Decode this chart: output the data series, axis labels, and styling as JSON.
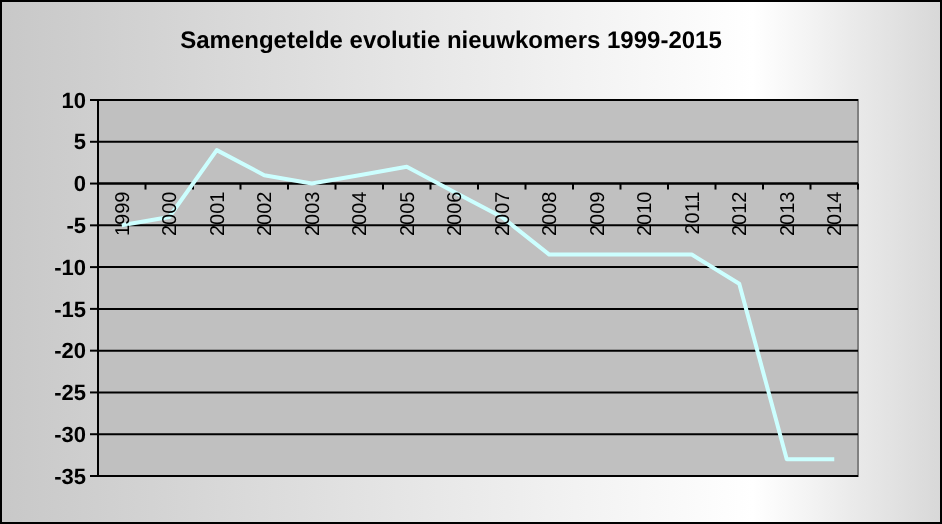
{
  "chart_data": {
    "type": "line",
    "title": "Samengetelde evolutie nieuwkomers 1999-2015",
    "categories": [
      "1999",
      "2000",
      "2001",
      "2002",
      "2003",
      "2004",
      "2005",
      "2006",
      "2007",
      "2008",
      "2009",
      "2010",
      "2011",
      "2012",
      "2013",
      "2014"
    ],
    "series": [
      {
        "color": "#ccffff",
        "values": [
          -5,
          -4,
          4,
          1,
          0,
          1,
          2,
          -1,
          -4,
          -8.5,
          -8.5,
          -8.5,
          -8.5,
          -12,
          -33,
          -33
        ]
      }
    ],
    "ylim": [
      -35,
      10
    ],
    "yticks": [
      -35,
      -30,
      -25,
      -20,
      -15,
      -10,
      -5,
      0,
      5,
      10
    ],
    "grid": "y",
    "marker": "none",
    "line_style": "solid"
  }
}
